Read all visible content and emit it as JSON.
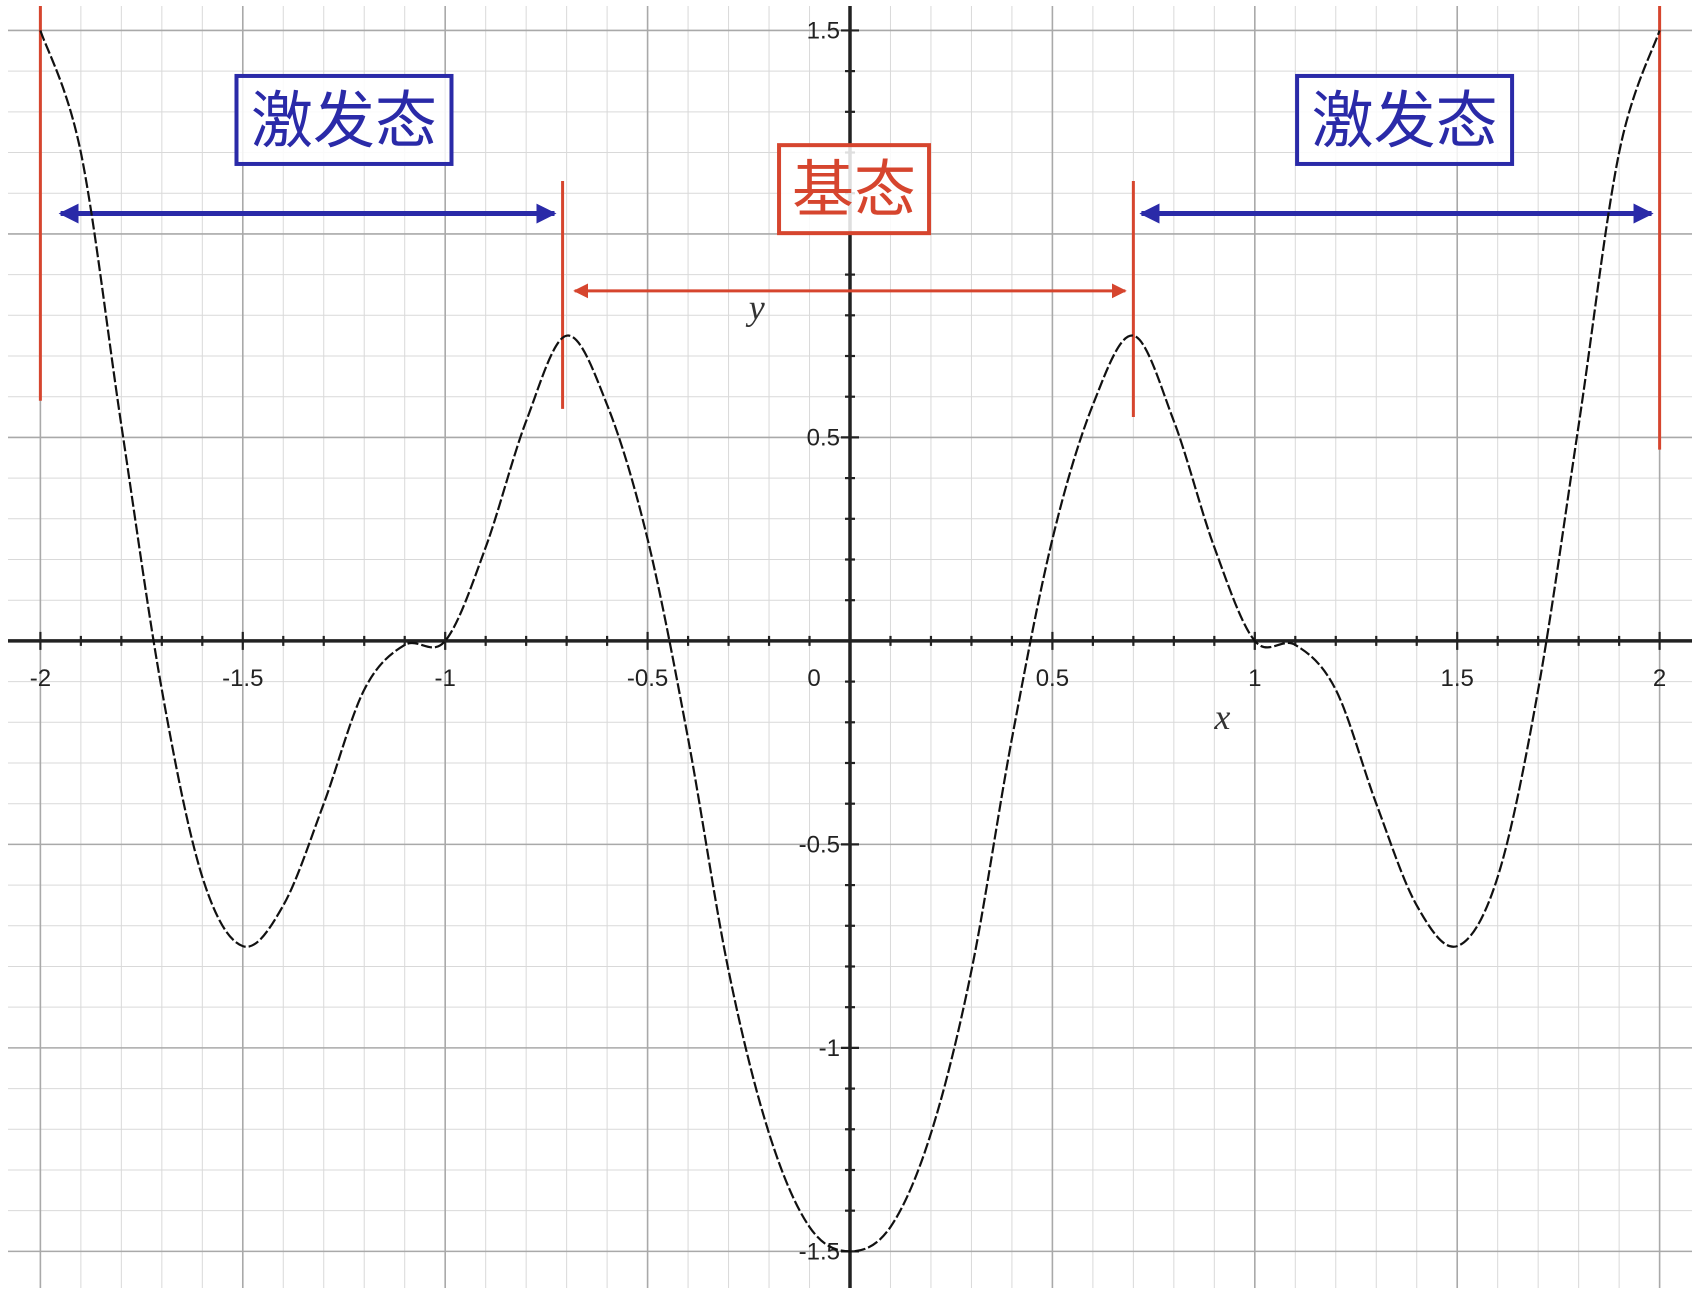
{
  "chart_data": {
    "type": "line",
    "xlabel": "x",
    "ylabel": "y",
    "xlim": [
      -2.08,
      2.08
    ],
    "ylim": [
      -1.59,
      1.56
    ],
    "grid": true,
    "x_ticks": [
      -2,
      -1.5,
      -1,
      -0.5,
      0,
      0.5,
      1,
      1.5,
      2
    ],
    "x_tick_labels": [
      "-2",
      "-1.5",
      "-1",
      "-0.5",
      "0",
      "0.5",
      "1",
      "1.5",
      "2"
    ],
    "y_ticks": [
      1.5,
      0.5,
      -0.5,
      -1,
      -1.5
    ],
    "y_tick_labels": [
      "1.5",
      "0.5",
      "-0.5",
      "-1",
      "-1.5"
    ],
    "series": [
      {
        "style": "dashed",
        "color": "#111111",
        "x": [
          -2,
          -1.9,
          -1.8,
          -1.7,
          -1.6,
          -1.5,
          -1.4,
          -1.3,
          -1.2,
          -1.1,
          -1,
          -0.9,
          -0.8,
          -0.7,
          -0.6,
          -0.5,
          -0.4,
          -0.3,
          -0.2,
          -0.1,
          0,
          0.1,
          0.2,
          0.3,
          0.4,
          0.5,
          0.6,
          0.7,
          0.8,
          0.9,
          1,
          1.1,
          1.2,
          1.3,
          1.4,
          1.5,
          1.6,
          1.7,
          1.8,
          1.9,
          2
        ],
        "y": [
          1.5,
          1.2,
          0.53,
          -0.12,
          -0.58,
          -0.75,
          -0.65,
          -0.4,
          -0.12,
          -0.01,
          0,
          0.23,
          0.54,
          0.75,
          0.58,
          0.25,
          -0.24,
          -0.81,
          -1.21,
          -1.44,
          -1.5,
          -1.44,
          -1.21,
          -0.81,
          -0.24,
          0.25,
          0.58,
          0.75,
          0.54,
          0.23,
          0,
          -0.01,
          -0.12,
          -0.4,
          -0.65,
          -0.75,
          -0.58,
          -0.12,
          0.53,
          1.2,
          1.5
        ]
      }
    ],
    "markers": [
      {
        "x": -2,
        "y_top": 1.56,
        "y_bottom": 0.59
      },
      {
        "x": -0.71,
        "y_top": 1.13,
        "y_bottom": 0.57
      },
      {
        "x": 0.7,
        "y_top": 1.13,
        "y_bottom": 0.55
      },
      {
        "x": 2,
        "y_top": 1.56,
        "y_bottom": 0.47
      }
    ],
    "annotations": [
      {
        "text": "激发态",
        "color": "#2a2aa8",
        "from_x": -1.95,
        "to_x": -0.73,
        "at_y": 1.05
      },
      {
        "text": "基态",
        "color": "#d6452e",
        "from_x": -0.68,
        "to_x": 0.68,
        "at_y": 0.86
      },
      {
        "text": "激发态",
        "color": "#2a2aa8",
        "from_x": 0.72,
        "to_x": 1.98,
        "at_y": 1.05
      }
    ]
  }
}
